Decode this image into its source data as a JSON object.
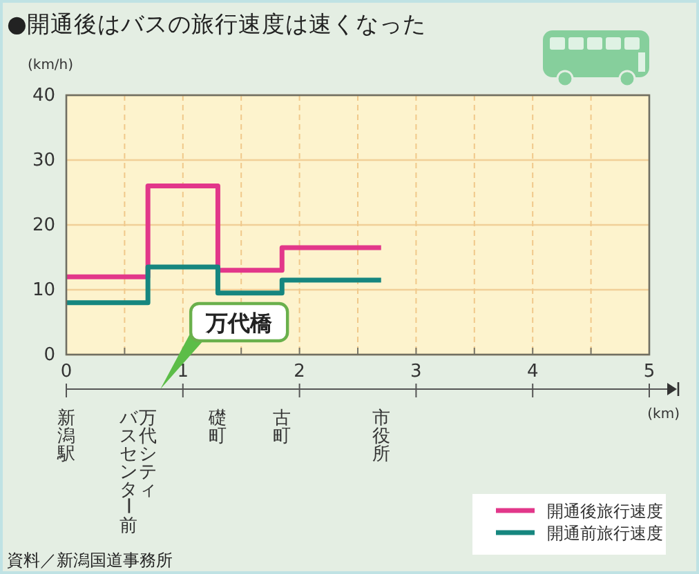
{
  "chart_data": {
    "type": "step",
    "title": "●開通後はバスの旅行速度は速くなった",
    "xlabel": "(km)",
    "ylabel": "(km/h)",
    "xlim": [
      0,
      5
    ],
    "xticks": [
      0,
      {
        "value": 0.5,
        "label": null
      },
      1,
      {
        "value": 1.5,
        "label": null
      },
      2,
      {
        "value": 2.5,
        "label": null
      },
      3,
      {
        "value": 3.5,
        "label": null
      },
      4,
      {
        "value": 4.5,
        "label": null
      },
      5
    ],
    "ylim": [
      0,
      40
    ],
    "yticks": [
      0,
      10,
      20,
      30,
      40
    ],
    "grid": true,
    "legend": "bottom right",
    "line_style": "solid",
    "series": [
      {
        "name": "開通後旅行速度",
        "color": "#e2378a",
        "x": [
          0,
          0.7,
          1.3,
          1.85,
          2.7
        ],
        "values": [
          12,
          26,
          13,
          16.5,
          16.5
        ]
      },
      {
        "name": "開通前旅行速度",
        "color": "#16867f",
        "x": [
          0,
          0.7,
          1.3,
          1.85,
          2.7
        ],
        "values": [
          8,
          13.5,
          9.5,
          11.5,
          11.5
        ]
      }
    ],
    "annotations": [
      "万代橋",
      "新潟駅",
      "万代シティ",
      "バスセンター前",
      "礎町",
      "古町",
      "市役所",
      "資料／新潟国道事務所"
    ]
  }
}
